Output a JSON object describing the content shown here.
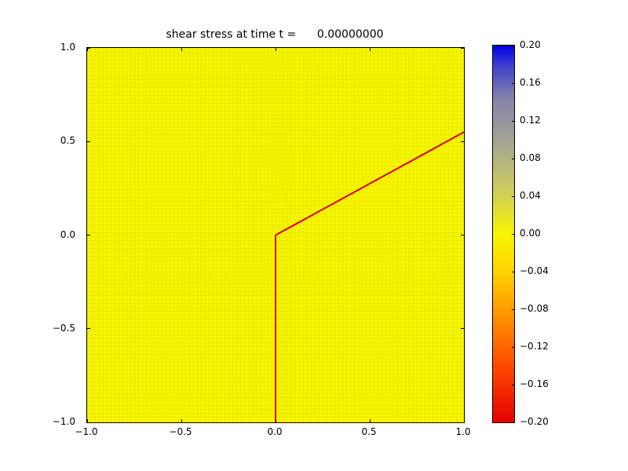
{
  "chart_data": {
    "type": "heatmap",
    "title": "shear stress at time t =      0.00000000",
    "xlabel": "",
    "ylabel": "",
    "xlim": [
      -1.0,
      1.0
    ],
    "ylim": [
      -1.0,
      1.0
    ],
    "x_tick_labels": [
      "−1.0",
      "−0.5",
      "0.0",
      "0.5",
      "1.0"
    ],
    "y_tick_labels": [
      "1.0",
      "0.5",
      "0.0",
      "−0.5",
      "−1.0"
    ],
    "grid": false,
    "field": {
      "description": "uniform shear stress field",
      "uniform_value": 0.0,
      "color": "#f8f500"
    },
    "overlay_line": {
      "name": "fault-line",
      "color": "#dd0000",
      "width": 2,
      "points_xy": [
        [
          0.0,
          -1.0
        ],
        [
          0.0,
          0.0
        ],
        [
          1.0,
          0.55
        ]
      ]
    },
    "colorbar": {
      "min": -0.2,
      "max": 0.2,
      "tick_labels": [
        "0.20",
        "0.16",
        "0.12",
        "0.08",
        "0.04",
        "0.00",
        "−0.04",
        "−0.08",
        "−0.12",
        "−0.16",
        "−0.20"
      ],
      "gradient_stops": [
        {
          "pos": 0,
          "color": "#0000e8"
        },
        {
          "pos": 5,
          "color": "#3c3cd0"
        },
        {
          "pos": 14,
          "color": "#8484a8"
        },
        {
          "pos": 25,
          "color": "#a2a296"
        },
        {
          "pos": 38,
          "color": "#cbcb60"
        },
        {
          "pos": 50,
          "color": "#f8f500"
        },
        {
          "pos": 60,
          "color": "#ffd300"
        },
        {
          "pos": 72,
          "color": "#ff9100"
        },
        {
          "pos": 85,
          "color": "#ff4a00"
        },
        {
          "pos": 100,
          "color": "#e60000"
        }
      ]
    }
  }
}
